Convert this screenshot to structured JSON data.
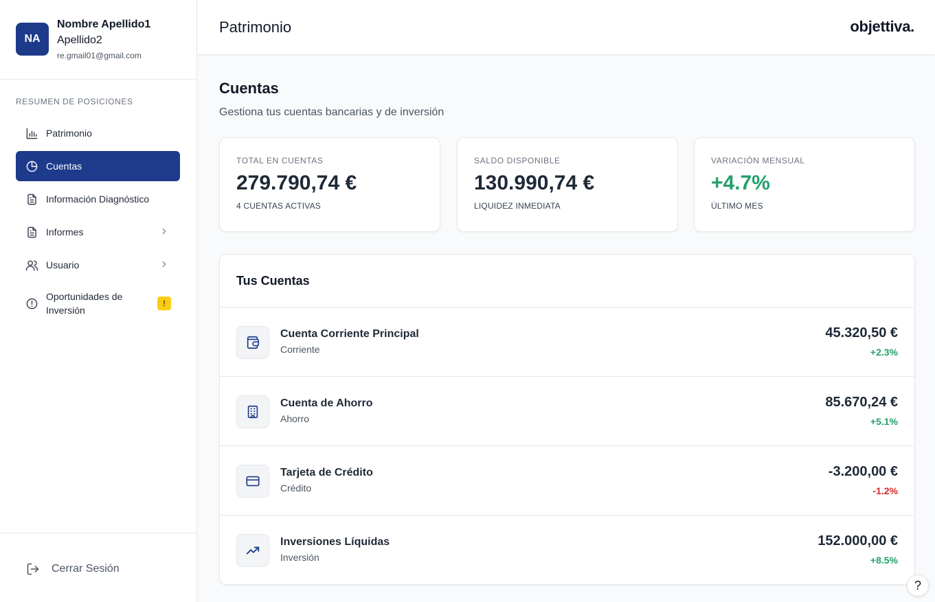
{
  "user": {
    "initials": "NA",
    "name_line1": "Nombre Apellido1",
    "name_line2": "Apellido2",
    "email": "re.gmail01@gmail.com"
  },
  "sidebar": {
    "section_label": "RESUMEN DE POSICIONES",
    "items": [
      {
        "label": "Patrimonio",
        "icon": "bar-chart-icon",
        "active": false
      },
      {
        "label": "Cuentas",
        "icon": "pie-chart-icon",
        "active": true
      },
      {
        "label": "Información Diagnóstico",
        "icon": "document-icon",
        "active": false
      },
      {
        "label": "Informes",
        "icon": "document-icon",
        "active": false,
        "has_submenu": true
      },
      {
        "label": "Usuario",
        "icon": "users-icon",
        "active": false,
        "has_submenu": true
      },
      {
        "label": "Oportunidades de Inversión",
        "icon": "alert-circle-icon",
        "active": false,
        "badge": "!"
      }
    ],
    "logout_label": "Cerrar Sesión"
  },
  "header": {
    "title": "Patrimonio",
    "brand": "objettiva."
  },
  "main": {
    "title": "Cuentas",
    "subtitle": "Gestiona tus cuentas bancarias y de inversión",
    "stats": [
      {
        "label": "TOTAL EN CUENTAS",
        "value": "279.790,74 €",
        "sub": "4 CUENTAS ACTIVAS"
      },
      {
        "label": "SALDO DISPONIBLE",
        "value": "130.990,74 €",
        "sub": "LIQUIDEZ INMEDIATA"
      },
      {
        "label": "VARIACIÓN MENSUAL",
        "value": "+4.7%",
        "sub": "ÚLTIMO MES"
      }
    ],
    "accounts_title": "Tus Cuentas",
    "accounts": [
      {
        "name": "Cuenta Corriente Principal",
        "type": "Corriente",
        "amount": "45.320,50 €",
        "change": "+2.3%",
        "icon": "wallet-icon"
      },
      {
        "name": "Cuenta de Ahorro",
        "type": "Ahorro",
        "amount": "85.670,24 €",
        "change": "+5.1%",
        "icon": "building-icon"
      },
      {
        "name": "Tarjeta de Crédito",
        "type": "Crédito",
        "amount": "-3.200,00 €",
        "change": "-1.2%",
        "icon": "credit-card-icon"
      },
      {
        "name": "Inversiones Líquidas",
        "type": "Inversión",
        "amount": "152.000,00 €",
        "change": "+8.5%",
        "icon": "trending-up-icon"
      }
    ]
  },
  "help_label": "?",
  "colors": {
    "primary": "#1e3a8a",
    "positive": "#22a06b",
    "negative": "#dc2626",
    "warning": "#facc15"
  }
}
